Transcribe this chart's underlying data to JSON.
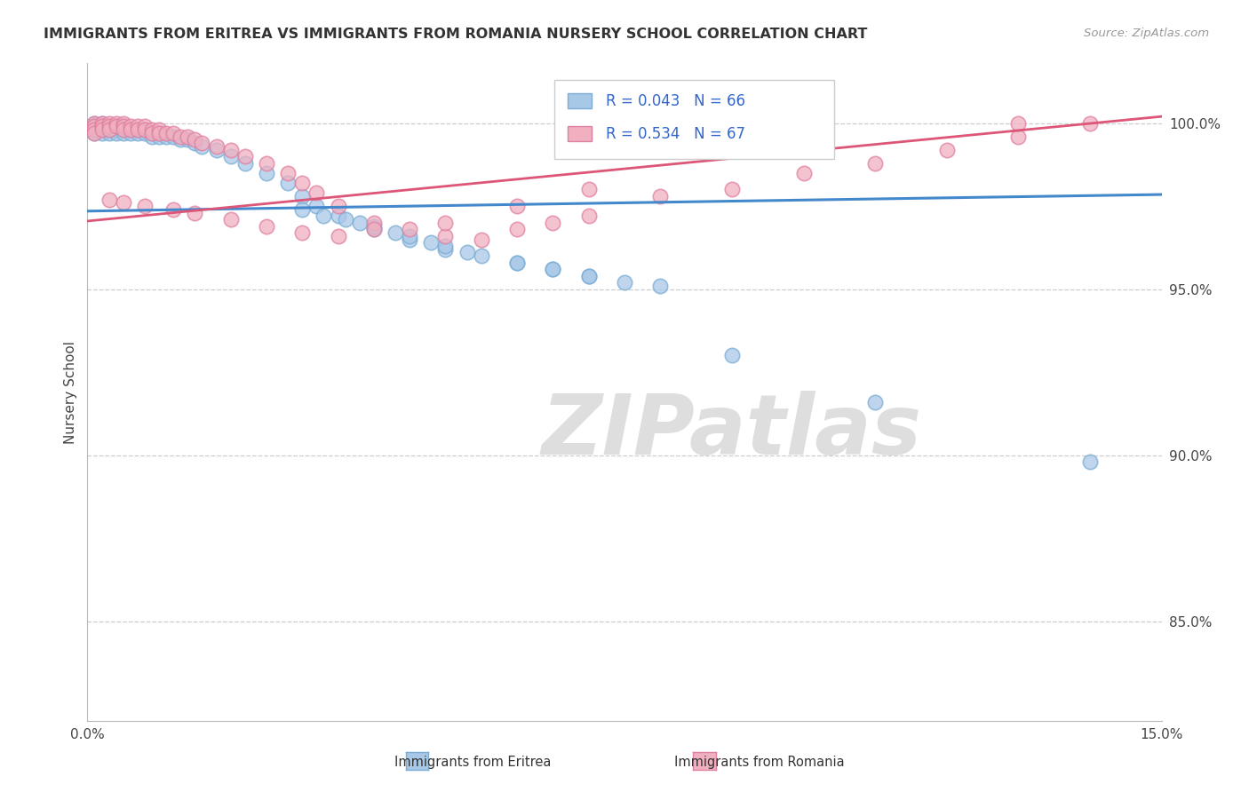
{
  "title": "IMMIGRANTS FROM ERITREA VS IMMIGRANTS FROM ROMANIA NURSERY SCHOOL CORRELATION CHART",
  "source": "Source: ZipAtlas.com",
  "ylabel": "Nursery School",
  "ytick_labels": [
    "100.0%",
    "95.0%",
    "90.0%",
    "85.0%"
  ],
  "ytick_values": [
    1.0,
    0.95,
    0.9,
    0.85
  ],
  "xtick_labels": [
    "0.0%",
    "15.0%"
  ],
  "xtick_values": [
    0.0,
    0.15
  ],
  "xlim": [
    0.0,
    0.15
  ],
  "ylim": [
    0.82,
    1.018
  ],
  "legend_eritrea": "Immigrants from Eritrea",
  "legend_romania": "Immigrants from Romania",
  "R_eritrea": "0.043",
  "N_eritrea": "66",
  "R_romania": "0.534",
  "N_romania": "67",
  "color_eritrea": "#a8c8e8",
  "color_eritrea_edge": "#7aadd4",
  "color_romania": "#f0b0c0",
  "color_romania_edge": "#e080a0",
  "line_color_eritrea": "#4488cc",
  "line_color_romania": "#dd5577",
  "watermark_color": "#dedede",
  "eritrea_x": [
    0.001,
    0.001,
    0.001,
    0.001,
    0.002,
    0.002,
    0.002,
    0.002,
    0.003,
    0.003,
    0.003,
    0.004,
    0.004,
    0.004,
    0.005,
    0.005,
    0.005,
    0.006,
    0.006,
    0.007,
    0.007,
    0.008,
    0.008,
    0.009,
    0.009,
    0.01,
    0.01,
    0.011,
    0.012,
    0.013,
    0.014,
    0.015,
    0.016,
    0.018,
    0.02,
    0.022,
    0.025,
    0.028,
    0.03,
    0.032,
    0.035,
    0.04,
    0.045,
    0.05,
    0.055,
    0.06,
    0.065,
    0.07,
    0.075,
    0.08,
    0.03,
    0.033,
    0.036,
    0.038,
    0.04,
    0.043,
    0.045,
    0.048,
    0.05,
    0.053,
    0.06,
    0.065,
    0.07,
    0.09,
    0.11,
    0.14
  ],
  "eritrea_y": [
    1.0,
    0.999,
    0.998,
    0.997,
    1.0,
    0.999,
    0.998,
    0.997,
    0.999,
    0.998,
    0.997,
    0.999,
    0.998,
    0.997,
    0.999,
    0.998,
    0.997,
    0.998,
    0.997,
    0.998,
    0.997,
    0.998,
    0.997,
    0.997,
    0.996,
    0.997,
    0.996,
    0.996,
    0.996,
    0.995,
    0.995,
    0.994,
    0.993,
    0.992,
    0.99,
    0.988,
    0.985,
    0.982,
    0.978,
    0.975,
    0.972,
    0.968,
    0.965,
    0.962,
    0.96,
    0.958,
    0.956,
    0.954,
    0.952,
    0.951,
    0.974,
    0.972,
    0.971,
    0.97,
    0.969,
    0.967,
    0.966,
    0.964,
    0.963,
    0.961,
    0.958,
    0.956,
    0.954,
    0.93,
    0.916,
    0.898
  ],
  "romania_x": [
    0.001,
    0.001,
    0.001,
    0.001,
    0.002,
    0.002,
    0.002,
    0.003,
    0.003,
    0.003,
    0.004,
    0.004,
    0.005,
    0.005,
    0.005,
    0.006,
    0.006,
    0.007,
    0.007,
    0.008,
    0.008,
    0.009,
    0.009,
    0.01,
    0.01,
    0.011,
    0.012,
    0.013,
    0.014,
    0.015,
    0.016,
    0.018,
    0.02,
    0.022,
    0.025,
    0.028,
    0.03,
    0.032,
    0.035,
    0.04,
    0.045,
    0.05,
    0.055,
    0.06,
    0.065,
    0.07,
    0.08,
    0.09,
    0.1,
    0.11,
    0.12,
    0.13,
    0.14,
    0.003,
    0.005,
    0.008,
    0.012,
    0.015,
    0.02,
    0.025,
    0.03,
    0.035,
    0.04,
    0.05,
    0.06,
    0.07,
    0.13
  ],
  "romania_y": [
    1.0,
    0.999,
    0.998,
    0.997,
    1.0,
    0.999,
    0.998,
    1.0,
    0.999,
    0.998,
    1.0,
    0.999,
    1.0,
    0.999,
    0.998,
    0.999,
    0.998,
    0.999,
    0.998,
    0.999,
    0.998,
    0.998,
    0.997,
    0.998,
    0.997,
    0.997,
    0.997,
    0.996,
    0.996,
    0.995,
    0.994,
    0.993,
    0.992,
    0.99,
    0.988,
    0.985,
    0.982,
    0.979,
    0.975,
    0.97,
    0.968,
    0.966,
    0.965,
    0.968,
    0.97,
    0.972,
    0.978,
    0.98,
    0.985,
    0.988,
    0.992,
    0.996,
    1.0,
    0.977,
    0.976,
    0.975,
    0.974,
    0.973,
    0.971,
    0.969,
    0.967,
    0.966,
    0.968,
    0.97,
    0.975,
    0.98,
    1.0
  ],
  "eritrea_line_x": [
    0.0,
    0.15
  ],
  "eritrea_line_y": [
    0.9735,
    0.9785
  ],
  "romania_line_x": [
    0.0,
    0.15
  ],
  "romania_line_y": [
    0.9705,
    1.002
  ]
}
